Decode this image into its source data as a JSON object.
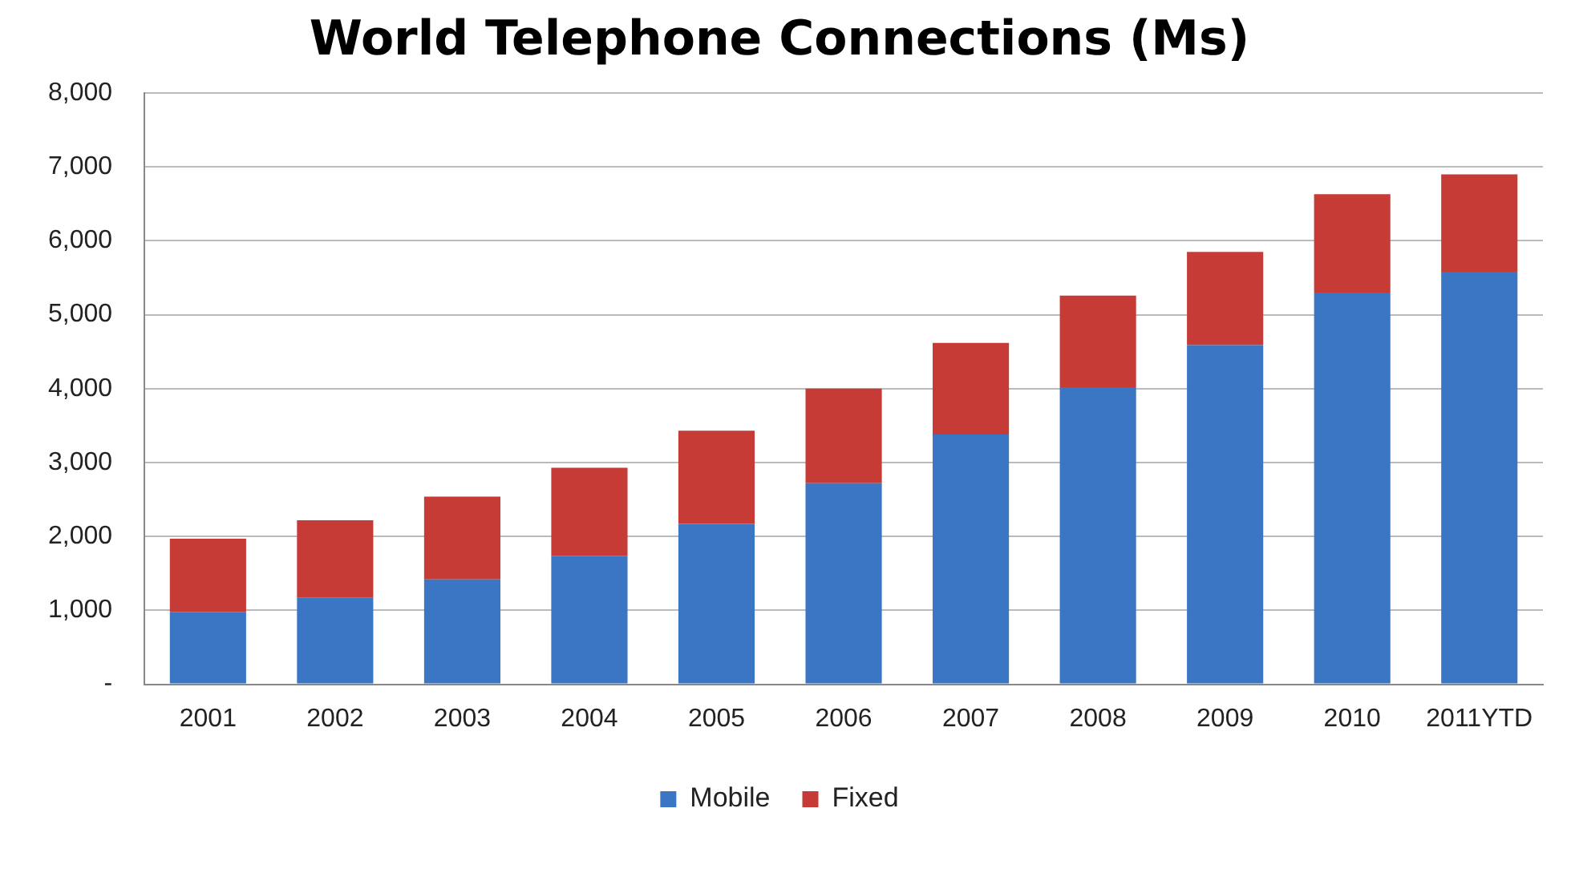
{
  "chart_data": {
    "type": "bar",
    "title": "World Telephone Connections (Ms)",
    "stacked": true,
    "categories": [
      "2001",
      "2002",
      "2003",
      "2004",
      "2005",
      "2006",
      "2007",
      "2008",
      "2009",
      "2010",
      "2011YTD"
    ],
    "series": [
      {
        "name": "Mobile",
        "color": "#3b76c4",
        "values": [
          980,
          1170,
          1420,
          1740,
          2170,
          2720,
          3380,
          4020,
          4590,
          5300,
          5580
        ]
      },
      {
        "name": "Fixed",
        "color": "#c63b36",
        "values": [
          990,
          1050,
          1120,
          1190,
          1260,
          1280,
          1240,
          1240,
          1260,
          1330,
          1320
        ]
      }
    ],
    "ylim": [
      0,
      8000
    ],
    "yticks": [
      {
        "value": 0,
        "label": "-"
      },
      {
        "value": 1000,
        "label": "1,000"
      },
      {
        "value": 2000,
        "label": "2,000"
      },
      {
        "value": 3000,
        "label": "3,000"
      },
      {
        "value": 4000,
        "label": "4,000"
      },
      {
        "value": 5000,
        "label": "5,000"
      },
      {
        "value": 6000,
        "label": "6,000"
      },
      {
        "value": 7000,
        "label": "7,000"
      },
      {
        "value": 8000,
        "label": "8,000"
      }
    ],
    "grid": "y",
    "legend": "bottom"
  }
}
